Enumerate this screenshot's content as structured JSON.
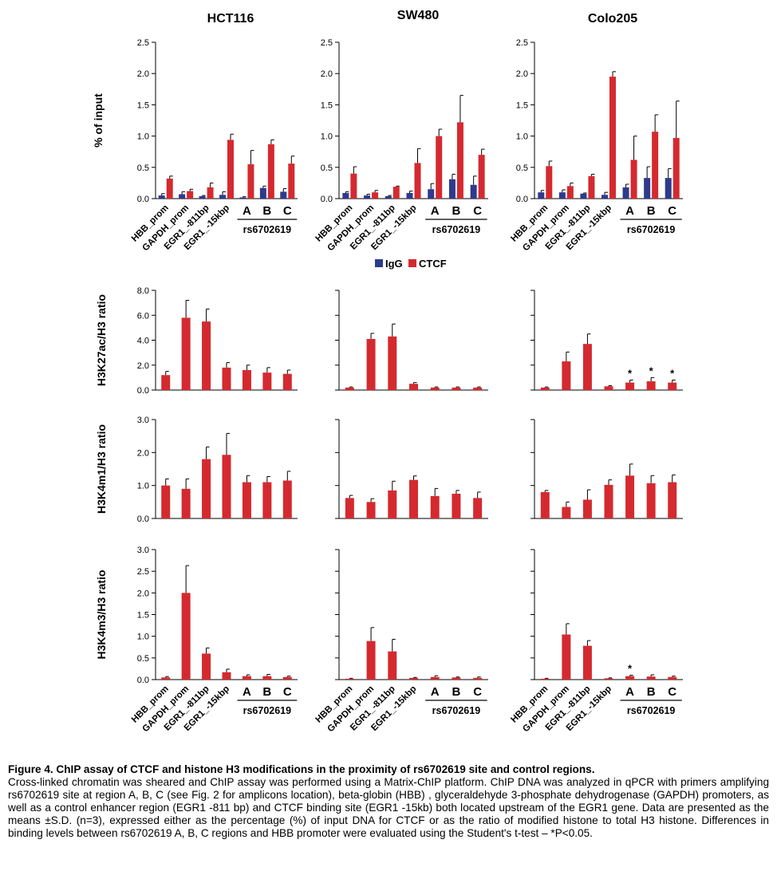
{
  "columns": [
    "HCT116",
    "SW480",
    "Colo205"
  ],
  "legend": {
    "items": [
      {
        "label": "IgG",
        "color": "#2e3a8c"
      },
      {
        "label": "CTCF",
        "color": "#d42a2f"
      }
    ]
  },
  "group_label": "rs6702619",
  "caption": {
    "title": "Figure 4. ChIP assay of CTCF and histone H3 modifications in the proximity of rs6702619 site and control regions.",
    "body": "Cross-linked chromatin was sheared and ChIP assay was performed using a Matrix-ChIP platform. ChIP DNA was analyzed in qPCR with primers amplifying rs6702619 site at region A, B, C (see Fig. 2 for amplicons location), beta-globin (HBB) , glyceraldehyde 3-phosphate dehydrogenase (GAPDH) promoters, as well as a control enhancer region (EGR1 -811 bp) and CTCF binding site (EGR1 -15kb) both located upstream of the EGR1 gene. Data are presented as the means ±S.D. (n=3), expressed either as the percentage (%) of input DNA for CTCF or as the ratio of modified histone to total H3 histone. Differences in binding levels between rs6702619 A, B, C regions and HBB promoter were evaluated using the Student's t-test – *P<0.05."
  },
  "chart_data": [
    {
      "type": "bar",
      "row": "CTCF ChIP",
      "column": "HCT116",
      "ylabel": "% of input",
      "ylim": [
        0,
        2.5
      ],
      "yticks": [
        "0.0",
        "0.5",
        "1.0",
        "1.5",
        "2.0",
        "2.5"
      ],
      "categories": [
        "HBB_prom",
        "GAPDH_prom",
        "EGR1_-811bp",
        "EGR1_-15kbp",
        "A",
        "B",
        "C"
      ],
      "series": [
        {
          "name": "IgG",
          "values": [
            0.05,
            0.07,
            0.04,
            0.06,
            0.02,
            0.17,
            0.11
          ],
          "errors": [
            0.03,
            0.04,
            0.01,
            0.05,
            0.01,
            0.03,
            0.05
          ]
        },
        {
          "name": "CTCF",
          "values": [
            0.32,
            0.12,
            0.18,
            0.94,
            0.55,
            0.87,
            0.56
          ],
          "errors": [
            0.04,
            0.03,
            0.07,
            0.09,
            0.22,
            0.07,
            0.12
          ]
        }
      ]
    },
    {
      "type": "bar",
      "row": "CTCF ChIP",
      "column": "SW480",
      "ylabel": "",
      "ylim": [
        0,
        2.5
      ],
      "yticks": [
        "0.0",
        "0.5",
        "1.0",
        "1.5",
        "2.0",
        "2.5"
      ],
      "categories": [
        "HBB_prom",
        "GAPDH_prom",
        "EGR1_-811bp",
        "EGR1_-15kbp",
        "A",
        "B",
        "C"
      ],
      "series": [
        {
          "name": "IgG",
          "values": [
            0.09,
            0.05,
            0.04,
            0.09,
            0.15,
            0.31,
            0.22
          ],
          "errors": [
            0.02,
            0.02,
            0.01,
            0.03,
            0.09,
            0.08,
            0.14
          ]
        },
        {
          "name": "CTCF",
          "values": [
            0.4,
            0.1,
            0.19,
            0.57,
            1.0,
            1.22,
            0.7
          ],
          "errors": [
            0.11,
            0.03,
            0.01,
            0.23,
            0.11,
            0.43,
            0.09
          ]
        }
      ]
    },
    {
      "type": "bar",
      "row": "CTCF ChIP",
      "column": "Colo205",
      "ylabel": "",
      "ylim": [
        0,
        2.5
      ],
      "yticks": [
        "0.0",
        "0.5",
        "1.0",
        "1.5",
        "2.0",
        "2.5"
      ],
      "categories": [
        "HBB_prom",
        "GAPDH_prom",
        "EGR1_-811bp",
        "EGR1_-15kbp",
        "A",
        "B",
        "C"
      ],
      "series": [
        {
          "name": "IgG",
          "values": [
            0.1,
            0.1,
            0.08,
            0.06,
            0.18,
            0.33,
            0.33
          ],
          "errors": [
            0.03,
            0.04,
            0.01,
            0.04,
            0.05,
            0.18,
            0.15
          ]
        },
        {
          "name": "CTCF",
          "values": [
            0.52,
            0.2,
            0.36,
            1.95,
            0.62,
            1.07,
            0.97
          ],
          "errors": [
            0.08,
            0.05,
            0.03,
            0.08,
            0.38,
            0.27,
            0.59
          ]
        }
      ]
    },
    {
      "type": "bar",
      "row": "H3K27ac",
      "column": "HCT116",
      "ylabel": "H3K27ac/H3 ratio",
      "ylim": [
        0,
        8.0
      ],
      "yticks": [
        "0.0",
        "2.0",
        "4.0",
        "6.0",
        "8.0"
      ],
      "categories": [
        "HBB_prom",
        "GAPDH_prom",
        "EGR1_-811bp",
        "EGR1_-15kbp",
        "A",
        "B",
        "C"
      ],
      "series": [
        {
          "name": "CTCF",
          "values": [
            1.2,
            5.8,
            5.5,
            1.8,
            1.6,
            1.4,
            1.3
          ],
          "errors": [
            0.3,
            1.4,
            1.0,
            0.4,
            0.4,
            0.4,
            0.3
          ]
        }
      ]
    },
    {
      "type": "bar",
      "row": "H3K27ac",
      "column": "SW480",
      "ylabel": "",
      "ylim": [
        0,
        8.0
      ],
      "yticks": [
        "",
        "",
        "",
        "",
        ""
      ],
      "categories": [
        "HBB_prom",
        "GAPDH_prom",
        "EGR1_-811bp",
        "EGR1_-15kbp",
        "A",
        "B",
        "C"
      ],
      "series": [
        {
          "name": "CTCF",
          "values": [
            0.2,
            4.1,
            4.3,
            0.5,
            0.2,
            0.2,
            0.2
          ],
          "errors": [
            0.05,
            0.45,
            1.0,
            0.1,
            0.05,
            0.05,
            0.05
          ]
        }
      ]
    },
    {
      "type": "bar",
      "row": "H3K27ac",
      "column": "Colo205",
      "ylabel": "",
      "ylim": [
        0,
        8.0
      ],
      "yticks": [
        "",
        "",
        "",
        "",
        ""
      ],
      "categories": [
        "HBB_prom",
        "GAPDH_prom",
        "EGR1_-811bp",
        "EGR1_-15kbp",
        "A",
        "B",
        "C"
      ],
      "series": [
        {
          "name": "CTCF",
          "values": [
            0.2,
            2.3,
            3.7,
            0.3,
            0.6,
            0.7,
            0.6
          ],
          "errors": [
            0.05,
            0.75,
            0.8,
            0.05,
            0.2,
            0.3,
            0.2
          ]
        }
      ],
      "annotations": [
        "",
        "",
        "",
        "",
        "*",
        "*",
        "*"
      ]
    },
    {
      "type": "bar",
      "row": "H3K4m1",
      "column": "HCT116",
      "ylabel": "H3K4m1/H3 ratio",
      "ylim": [
        0,
        3.0
      ],
      "yticks": [
        "0.0",
        "1.0",
        "2.0",
        "3.0"
      ],
      "categories": [
        "HBB_prom",
        "GAPDH_prom",
        "EGR1_-811bp",
        "EGR1_-15kbp",
        "A",
        "B",
        "C"
      ],
      "series": [
        {
          "name": "CTCF",
          "values": [
            1.0,
            0.9,
            1.8,
            1.93,
            1.1,
            1.1,
            1.15
          ],
          "errors": [
            0.2,
            0.3,
            0.37,
            0.65,
            0.2,
            0.17,
            0.28
          ]
        }
      ]
    },
    {
      "type": "bar",
      "row": "H3K4m1",
      "column": "SW480",
      "ylabel": "",
      "ylim": [
        0,
        3.0
      ],
      "yticks": [
        "",
        "",
        "",
        ""
      ],
      "categories": [
        "HBB_prom",
        "GAPDH_prom",
        "EGR1_-811bp",
        "EGR1_-15kbp",
        "A",
        "B",
        "C"
      ],
      "series": [
        {
          "name": "CTCF",
          "values": [
            0.62,
            0.5,
            0.85,
            1.17,
            0.68,
            0.75,
            0.62
          ],
          "errors": [
            0.08,
            0.1,
            0.28,
            0.12,
            0.23,
            0.1,
            0.18
          ]
        }
      ]
    },
    {
      "type": "bar",
      "row": "H3K4m1",
      "column": "Colo205",
      "ylabel": "",
      "ylim": [
        0,
        3.0
      ],
      "yticks": [
        "",
        "",
        "",
        ""
      ],
      "categories": [
        "HBB_prom",
        "GAPDH_prom",
        "EGR1_-811bp",
        "EGR1_-15kbp",
        "A",
        "B",
        "C"
      ],
      "series": [
        {
          "name": "CTCF",
          "values": [
            0.8,
            0.35,
            0.57,
            1.02,
            1.3,
            1.07,
            1.1
          ],
          "errors": [
            0.05,
            0.15,
            0.3,
            0.15,
            0.35,
            0.23,
            0.22
          ]
        }
      ]
    },
    {
      "type": "bar",
      "row": "H3K4m3",
      "column": "HCT116",
      "ylabel": "H3K4m3/H3 ratio",
      "ylim": [
        0,
        3.0
      ],
      "yticks": [
        "0.0",
        "0.5",
        "1.0",
        "1.5",
        "2.0",
        "2.5",
        "3.0"
      ],
      "categories": [
        "HBB_prom",
        "GAPDH_prom",
        "EGR1_-811bp",
        "EGR1_-15kbp",
        "A",
        "B",
        "C"
      ],
      "series": [
        {
          "name": "CTCF",
          "values": [
            0.05,
            2.0,
            0.6,
            0.17,
            0.08,
            0.08,
            0.06
          ],
          "errors": [
            0.02,
            0.63,
            0.13,
            0.07,
            0.03,
            0.04,
            0.02
          ]
        }
      ]
    },
    {
      "type": "bar",
      "row": "H3K4m3",
      "column": "SW480",
      "ylabel": "",
      "ylim": [
        0,
        3.0
      ],
      "yticks": [
        "",
        "",
        "",
        "",
        "",
        "",
        ""
      ],
      "categories": [
        "HBB_prom",
        "GAPDH_prom",
        "EGR1_-811bp",
        "EGR1_-15kbp",
        "A",
        "B",
        "C"
      ],
      "series": [
        {
          "name": "CTCF",
          "values": [
            0.02,
            0.89,
            0.65,
            0.04,
            0.06,
            0.05,
            0.04
          ],
          "errors": [
            0.01,
            0.31,
            0.28,
            0.01,
            0.03,
            0.01,
            0.02
          ]
        }
      ]
    },
    {
      "type": "bar",
      "row": "H3K4m3",
      "column": "Colo205",
      "ylabel": "",
      "ylim": [
        0,
        3.0
      ],
      "yticks": [
        "",
        "",
        "",
        "",
        "",
        "",
        ""
      ],
      "categories": [
        "HBB_prom",
        "GAPDH_prom",
        "EGR1_-811bp",
        "EGR1_-15kbp",
        "A",
        "B",
        "C"
      ],
      "series": [
        {
          "name": "CTCF",
          "values": [
            0.02,
            1.04,
            0.78,
            0.03,
            0.08,
            0.07,
            0.06
          ],
          "errors": [
            0.01,
            0.25,
            0.12,
            0.01,
            0.02,
            0.04,
            0.02
          ]
        }
      ],
      "annotations": [
        "",
        "",
        "",
        "",
        "*",
        "",
        ""
      ]
    }
  ]
}
